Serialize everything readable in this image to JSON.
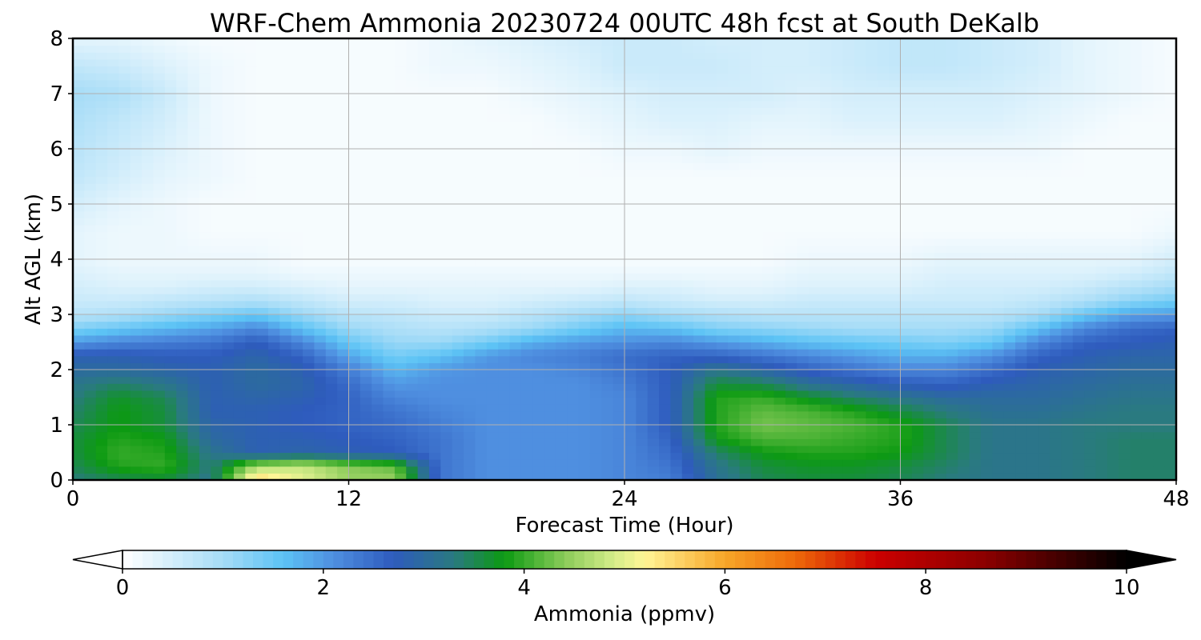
{
  "chart_data": {
    "type": "heatmap",
    "title": "WRF-Chem Ammonia  20230724 00UTC 48h fcst at South DeKalb",
    "xlabel": "Forecast Time (Hour)",
    "ylabel": "Alt AGL (km)",
    "xlim": [
      0,
      48
    ],
    "ylim": [
      0,
      8
    ],
    "xticks": [
      0,
      12,
      24,
      36,
      48
    ],
    "yticks": [
      0,
      1,
      2,
      3,
      4,
      5,
      6,
      7,
      8
    ],
    "grid": true,
    "colorbar": {
      "label": "Ammonia  (ppmv)",
      "range": [
        0,
        10
      ],
      "ticks": [
        0,
        2,
        4,
        6,
        8,
        10
      ],
      "extend": "both",
      "orientation": "horizontal",
      "colormap": [
        {
          "value": 0.0,
          "color": "#ffffff"
        },
        {
          "value": 1.0,
          "color": "#a6dcf7"
        },
        {
          "value": 1.6,
          "color": "#5cc3f5"
        },
        {
          "value": 2.1,
          "color": "#4f8fe0"
        },
        {
          "value": 2.7,
          "color": "#2e5bbd"
        },
        {
          "value": 3.3,
          "color": "#2a7a80"
        },
        {
          "value": 3.8,
          "color": "#0c9a12"
        },
        {
          "value": 4.4,
          "color": "#8acb59"
        },
        {
          "value": 4.9,
          "color": "#d6ed8a"
        },
        {
          "value": 5.2,
          "color": "#fff596"
        },
        {
          "value": 6.0,
          "color": "#f7a628"
        },
        {
          "value": 6.7,
          "color": "#ee6a0a"
        },
        {
          "value": 7.5,
          "color": "#cc0000"
        },
        {
          "value": 8.6,
          "color": "#8b0000"
        },
        {
          "value": 10.0,
          "color": "#000000"
        }
      ]
    },
    "x": [
      0,
      2,
      4,
      6,
      8,
      10,
      12,
      14,
      16,
      18,
      20,
      22,
      24,
      26,
      28,
      30,
      32,
      34,
      36,
      38,
      40,
      42,
      44,
      46,
      48
    ],
    "y": [
      0,
      0.25,
      0.5,
      0.75,
      1,
      1.25,
      1.5,
      1.75,
      2,
      2.25,
      2.5,
      2.75,
      3,
      3.25,
      3.5,
      3.75,
      4,
      4.5,
      5,
      5.5,
      6,
      6.5,
      7,
      7.5,
      8
    ],
    "z": [
      [
        3.3,
        3.5,
        3.6,
        3.2,
        5.6,
        5.0,
        4.5,
        4.5,
        2.4,
        2.1,
        2.1,
        2.1,
        2.2,
        2.3,
        3.1,
        3.5,
        3.6,
        3.6,
        3.5,
        3.3,
        3.2,
        3.2,
        3.3,
        3.4,
        3.4
      ],
      [
        3.5,
        3.9,
        4.0,
        3.3,
        4.6,
        4.8,
        4.4,
        4.2,
        2.4,
        2.1,
        2.1,
        2.1,
        2.2,
        2.4,
        3.2,
        3.6,
        3.7,
        3.7,
        3.6,
        3.4,
        3.2,
        3.2,
        3.3,
        3.4,
        3.4
      ],
      [
        3.6,
        4.0,
        3.9,
        3.2,
        2.8,
        2.9,
        2.8,
        2.7,
        2.4,
        2.1,
        2.1,
        2.1,
        2.2,
        2.5,
        3.4,
        3.8,
        3.9,
        3.9,
        3.8,
        3.5,
        3.2,
        3.2,
        3.3,
        3.4,
        3.4
      ],
      [
        3.6,
        3.9,
        3.8,
        3.0,
        2.8,
        2.8,
        2.7,
        2.6,
        2.4,
        2.1,
        2.1,
        2.1,
        2.2,
        2.6,
        3.8,
        4.1,
        4.1,
        4.0,
        3.9,
        3.5,
        3.2,
        3.2,
        3.3,
        3.4,
        3.4
      ],
      [
        3.5,
        3.8,
        3.6,
        2.9,
        2.8,
        2.7,
        2.6,
        2.5,
        2.3,
        2.1,
        2.1,
        2.1,
        2.2,
        2.7,
        3.9,
        4.3,
        4.2,
        4.1,
        3.9,
        3.5,
        3.2,
        3.2,
        3.3,
        3.3,
        3.3
      ],
      [
        3.4,
        3.8,
        3.6,
        2.8,
        2.8,
        2.7,
        2.6,
        2.4,
        2.2,
        2.1,
        2.1,
        2.1,
        2.2,
        2.7,
        3.9,
        4.2,
        4.1,
        3.9,
        3.6,
        3.3,
        3.1,
        3.1,
        3.2,
        3.3,
        3.3
      ],
      [
        3.3,
        3.7,
        3.5,
        2.8,
        2.9,
        2.8,
        2.6,
        2.2,
        2.1,
        2.1,
        2.1,
        2.1,
        2.2,
        2.7,
        3.9,
        4.0,
        3.7,
        3.4,
        3.2,
        3.0,
        3.0,
        3.0,
        3.1,
        3.2,
        3.2
      ],
      [
        3.2,
        3.4,
        3.2,
        2.8,
        3.0,
        2.9,
        2.5,
        2.0,
        2.1,
        2.1,
        2.1,
        2.1,
        2.3,
        2.7,
        3.6,
        3.5,
        3.1,
        2.9,
        2.7,
        2.6,
        2.8,
        2.9,
        3.0,
        3.1,
        3.1
      ],
      [
        3.0,
        3.0,
        2.9,
        2.8,
        3.0,
        2.8,
        2.3,
        1.7,
        2.0,
        2.1,
        2.1,
        2.2,
        2.4,
        2.7,
        3.2,
        2.9,
        2.6,
        2.4,
        2.2,
        2.2,
        2.5,
        2.8,
        2.9,
        3.0,
        3.0
      ],
      [
        2.8,
        2.8,
        2.7,
        2.7,
        2.9,
        2.6,
        1.9,
        1.4,
        1.6,
        2.0,
        2.2,
        2.3,
        2.5,
        2.6,
        2.6,
        2.4,
        2.2,
        2.0,
        1.8,
        1.8,
        2.1,
        2.6,
        2.8,
        2.9,
        2.9
      ],
      [
        2.0,
        2.2,
        2.3,
        2.4,
        2.7,
        2.2,
        1.5,
        1.1,
        1.1,
        1.4,
        1.8,
        2.0,
        2.1,
        2.2,
        2.0,
        1.8,
        1.6,
        1.5,
        1.4,
        1.3,
        1.5,
        2.2,
        2.6,
        2.7,
        2.8
      ],
      [
        1.3,
        1.5,
        1.7,
        1.9,
        2.2,
        1.6,
        1.1,
        0.9,
        0.8,
        0.9,
        1.1,
        1.4,
        1.7,
        1.6,
        1.3,
        1.2,
        1.1,
        1.0,
        1.0,
        1.0,
        1.1,
        1.6,
        2.2,
        2.5,
        2.6
      ],
      [
        0.8,
        0.9,
        1.1,
        1.3,
        1.5,
        1.1,
        0.8,
        0.7,
        0.6,
        0.6,
        0.8,
        1.0,
        1.2,
        1.0,
        0.9,
        0.8,
        0.8,
        0.8,
        0.8,
        0.8,
        0.8,
        1.0,
        1.5,
        1.9,
        2.0
      ],
      [
        0.6,
        0.6,
        0.7,
        0.8,
        0.9,
        0.7,
        0.5,
        0.5,
        0.4,
        0.4,
        0.5,
        0.6,
        0.7,
        0.6,
        0.5,
        0.5,
        0.6,
        0.6,
        0.6,
        0.6,
        0.6,
        0.7,
        0.9,
        1.2,
        1.4
      ],
      [
        0.5,
        0.4,
        0.4,
        0.5,
        0.5,
        0.4,
        0.3,
        0.3,
        0.3,
        0.3,
        0.3,
        0.3,
        0.4,
        0.4,
        0.3,
        0.3,
        0.4,
        0.4,
        0.4,
        0.5,
        0.5,
        0.5,
        0.6,
        0.8,
        1.0
      ],
      [
        0.4,
        0.3,
        0.3,
        0.3,
        0.3,
        0.2,
        0.2,
        0.2,
        0.2,
        0.2,
        0.2,
        0.2,
        0.2,
        0.2,
        0.2,
        0.2,
        0.3,
        0.3,
        0.3,
        0.4,
        0.4,
        0.4,
        0.4,
        0.5,
        0.7
      ],
      [
        0.3,
        0.2,
        0.2,
        0.2,
        0.2,
        0.1,
        0.1,
        0.1,
        0.1,
        0.1,
        0.1,
        0.1,
        0.1,
        0.1,
        0.1,
        0.1,
        0.2,
        0.2,
        0.2,
        0.3,
        0.3,
        0.3,
        0.3,
        0.3,
        0.5
      ],
      [
        0.3,
        0.2,
        0.2,
        0.1,
        0.1,
        0.1,
        0.1,
        0.1,
        0.1,
        0.1,
        0.1,
        0.1,
        0.1,
        0.1,
        0.1,
        0.1,
        0.1,
        0.1,
        0.1,
        0.1,
        0.1,
        0.1,
        0.1,
        0.1,
        0.2
      ],
      [
        0.5,
        0.3,
        0.2,
        0.1,
        0.1,
        0.1,
        0.1,
        0.1,
        0.1,
        0.1,
        0.1,
        0.1,
        0.1,
        0.1,
        0.1,
        0.1,
        0.1,
        0.1,
        0.1,
        0.1,
        0.1,
        0.1,
        0.1,
        0.1,
        0.1
      ],
      [
        0.7,
        0.5,
        0.3,
        0.2,
        0.1,
        0.1,
        0.1,
        0.1,
        0.1,
        0.1,
        0.1,
        0.1,
        0.1,
        0.1,
        0.1,
        0.1,
        0.1,
        0.1,
        0.1,
        0.1,
        0.1,
        0.1,
        0.1,
        0.1,
        0.1
      ],
      [
        0.8,
        0.6,
        0.4,
        0.2,
        0.1,
        0.1,
        0.1,
        0.1,
        0.1,
        0.1,
        0.1,
        0.1,
        0.2,
        0.2,
        0.3,
        0.2,
        0.2,
        0.2,
        0.2,
        0.2,
        0.2,
        0.2,
        0.1,
        0.1,
        0.1
      ],
      [
        0.9,
        0.7,
        0.5,
        0.2,
        0.1,
        0.1,
        0.1,
        0.1,
        0.1,
        0.1,
        0.1,
        0.2,
        0.3,
        0.4,
        0.4,
        0.3,
        0.3,
        0.4,
        0.4,
        0.4,
        0.4,
        0.3,
        0.2,
        0.1,
        0.1
      ],
      [
        1.0,
        0.9,
        0.6,
        0.2,
        0.1,
        0.1,
        0.1,
        0.1,
        0.1,
        0.1,
        0.2,
        0.3,
        0.4,
        0.5,
        0.5,
        0.5,
        0.4,
        0.5,
        0.5,
        0.5,
        0.5,
        0.4,
        0.3,
        0.2,
        0.1
      ],
      [
        0.7,
        0.6,
        0.4,
        0.2,
        0.1,
        0.1,
        0.1,
        0.1,
        0.2,
        0.2,
        0.3,
        0.4,
        0.6,
        0.6,
        0.6,
        0.5,
        0.5,
        0.6,
        0.7,
        0.7,
        0.6,
        0.5,
        0.3,
        0.2,
        0.1
      ],
      [
        0.3,
        0.3,
        0.2,
        0.1,
        0.1,
        0.1,
        0.1,
        0.1,
        0.2,
        0.3,
        0.4,
        0.5,
        0.6,
        0.6,
        0.5,
        0.5,
        0.5,
        0.6,
        0.7,
        0.7,
        0.6,
        0.5,
        0.3,
        0.2,
        0.1
      ]
    ]
  }
}
